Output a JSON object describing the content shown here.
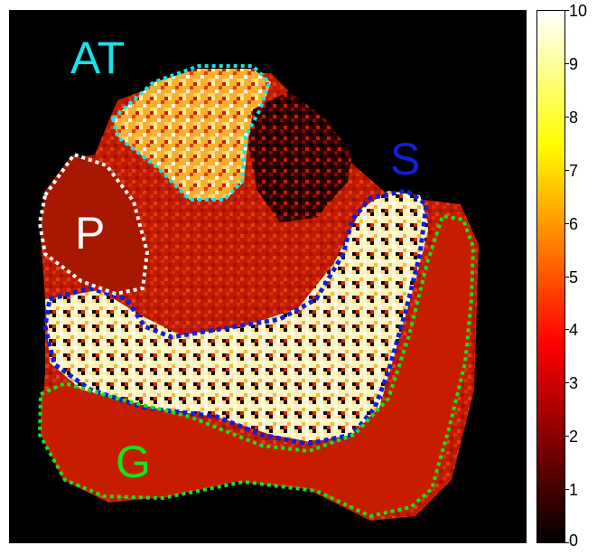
{
  "regions": [
    {
      "name": "AT",
      "color": "#17e3e8"
    },
    {
      "name": "S",
      "color": "#1020d8"
    },
    {
      "name": "P",
      "color": "#ffffff"
    },
    {
      "name": "G",
      "color": "#14e614"
    }
  ],
  "colorbar": {
    "min": 0,
    "max": 10,
    "ticks": [
      "0",
      "1",
      "2",
      "3",
      "4",
      "5",
      "6",
      "7",
      "8",
      "9",
      "10"
    ],
    "colormap": "hot"
  }
}
